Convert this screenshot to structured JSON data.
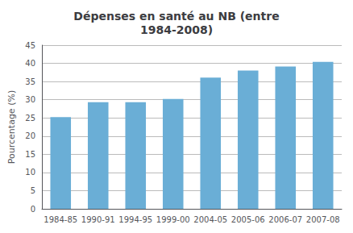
{
  "chart_data": {
    "type": "bar",
    "title": "Dépenses en santé au NB (entre\n1984-2008)",
    "categories": [
      "1984-85",
      "1990-91",
      "1994-95",
      "1999-00",
      "2004-05",
      "2005-06",
      "2006-07",
      "2007-08"
    ],
    "values": [
      25.2,
      29.3,
      29.3,
      30.2,
      36.1,
      38.0,
      39.1,
      40.4
    ],
    "color": "#6aaed6",
    "ylabel": "Pourcentage (%)",
    "ylim": [
      0,
      45
    ],
    "yticks": [
      0,
      5,
      10,
      15,
      20,
      25,
      30,
      35,
      40,
      45
    ],
    "grid": true
  }
}
